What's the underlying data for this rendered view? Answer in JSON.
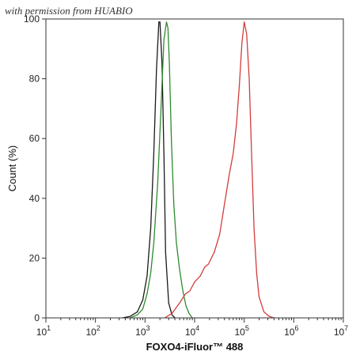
{
  "watermark": "with permission from HUABIO",
  "chart_data": {
    "type": "line",
    "title": "",
    "xlabel": "FOXO4-iFluor™ 488",
    "ylabel": "Count  (%)",
    "xscale": "log",
    "xlim": [
      10,
      10000000
    ],
    "ylim": [
      0,
      100
    ],
    "x_ticks": [
      {
        "value": 10,
        "base": "10",
        "exp": "1"
      },
      {
        "value": 100,
        "base": "10",
        "exp": "2"
      },
      {
        "value": 1000,
        "base": "10",
        "exp": "3"
      },
      {
        "value": 10000,
        "base": "10",
        "exp": "4"
      },
      {
        "value": 100000,
        "base": "10",
        "exp": "5"
      },
      {
        "value": 1000000,
        "base": "10",
        "exp": "6"
      },
      {
        "value": 10000000,
        "base": "10",
        "exp": "7"
      }
    ],
    "y_ticks": [
      "0",
      "20",
      "40",
      "60",
      "80",
      "100"
    ],
    "legend": "none",
    "grid": false,
    "series": [
      {
        "color": "#1a1a1a",
        "x": [
          350,
          500,
          700,
          900,
          1100,
          1300,
          1500,
          1700,
          1900,
          2000,
          2200,
          2400,
          2600,
          3000,
          3500,
          4000
        ],
        "y": [
          0,
          0.5,
          2,
          6,
          14,
          30,
          55,
          83,
          99,
          99,
          85,
          55,
          22,
          5,
          1,
          0
        ]
      },
      {
        "color": "#2e8b2e",
        "x": [
          500,
          700,
          900,
          1100,
          1300,
          1500,
          1800,
          2100,
          2400,
          2700,
          2900,
          3100,
          3400,
          3800,
          4300,
          5000,
          5800,
          6700,
          7700,
          9000
        ],
        "y": [
          0,
          1,
          3,
          8,
          15,
          25,
          45,
          70,
          93,
          99,
          97,
          85,
          60,
          38,
          25,
          16,
          9,
          4,
          1.5,
          0
        ]
      },
      {
        "color": "#d23c3c",
        "x": [
          2500,
          3500,
          5000,
          6500,
          8000,
          10000,
          13000,
          16000,
          19000,
          25000,
          32000,
          40000,
          50000,
          60000,
          70000,
          80000,
          90000,
          100000,
          112000,
          126000,
          141000,
          158000,
          178000,
          200000,
          250000,
          320000,
          400000
        ],
        "y": [
          0,
          1.5,
          5,
          8,
          9,
          12,
          14,
          17,
          18,
          22,
          28,
          38,
          48,
          55,
          65,
          78,
          92,
          99,
          95,
          80,
          55,
          30,
          15,
          7,
          2,
          0.5,
          0
        ]
      }
    ]
  }
}
